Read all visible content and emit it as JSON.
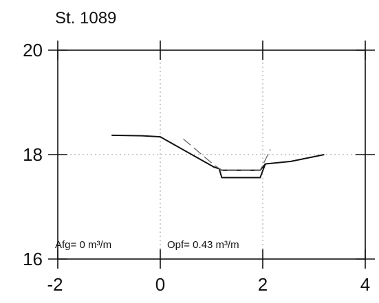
{
  "chart_data": {
    "type": "line",
    "title": "St. 1089",
    "xlabel": "",
    "ylabel": "",
    "xlim": [
      -2,
      4
    ],
    "ylim": [
      16,
      20
    ],
    "xticks": [
      -2,
      0,
      2,
      4
    ],
    "yticks": [
      16,
      18,
      20
    ],
    "xtick_labels": [
      "-2",
      "0",
      "2",
      "4"
    ],
    "ytick_labels": [
      "16",
      "18",
      "20"
    ],
    "grid": "dotted at x=0, x=2 and y=18",
    "series": [
      {
        "style": "solid",
        "color": "#111111",
        "x": [
          -0.95,
          -0.35,
          0.0,
          1.05,
          1.15,
          1.2,
          1.95,
          2.05,
          2.55,
          3.2
        ],
        "y": [
          18.37,
          18.36,
          18.34,
          17.76,
          17.73,
          17.7,
          17.7,
          17.82,
          17.87,
          18.0
        ]
      },
      {
        "style": "solid",
        "color": "#111111",
        "x": [
          1.15,
          1.2,
          1.95,
          2.05
        ],
        "y": [
          17.73,
          17.56,
          17.56,
          17.82
        ]
      },
      {
        "style": "dashed",
        "color": "#666666",
        "x": [
          0.45,
          1.05,
          1.2,
          1.95,
          2.15
        ],
        "y": [
          18.3,
          17.8,
          17.7,
          17.7,
          18.1
        ]
      }
    ],
    "annotations": [
      "Afg= 0 m³/m",
      "Opf= 0.43 m³/m"
    ]
  }
}
